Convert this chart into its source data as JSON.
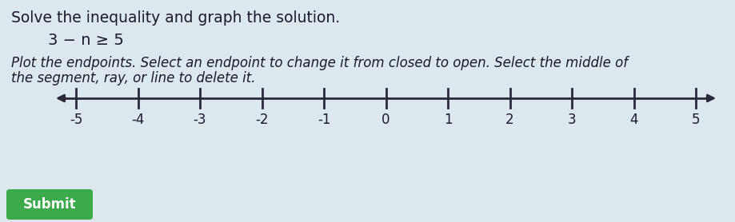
{
  "title_line1": "Solve the inequality and graph the solution.",
  "equation": "3 − n ≥ 5",
  "instruction_line1": "Plot the endpoints. Select an endpoint to change it from closed to open. Select the middle of",
  "instruction_line2": "the segment, ray, or line to delete it.",
  "number_line_min": -5,
  "number_line_max": 5,
  "tick_labels": [
    "-5",
    "-4",
    "-3",
    "-2",
    "-1",
    "0",
    "1",
    "2",
    "3",
    "4",
    "5"
  ],
  "tick_values": [
    -5,
    -4,
    -3,
    -2,
    -1,
    0,
    1,
    2,
    3,
    4,
    5
  ],
  "background_color": "#dde8ee",
  "line_color": "#2a2a3a",
  "text_color": "#1a1a2a",
  "submit_button_color": "#3aaa4a",
  "submit_text": "Submit",
  "fig_width": 9.19,
  "fig_height": 2.78,
  "dpi": 100
}
